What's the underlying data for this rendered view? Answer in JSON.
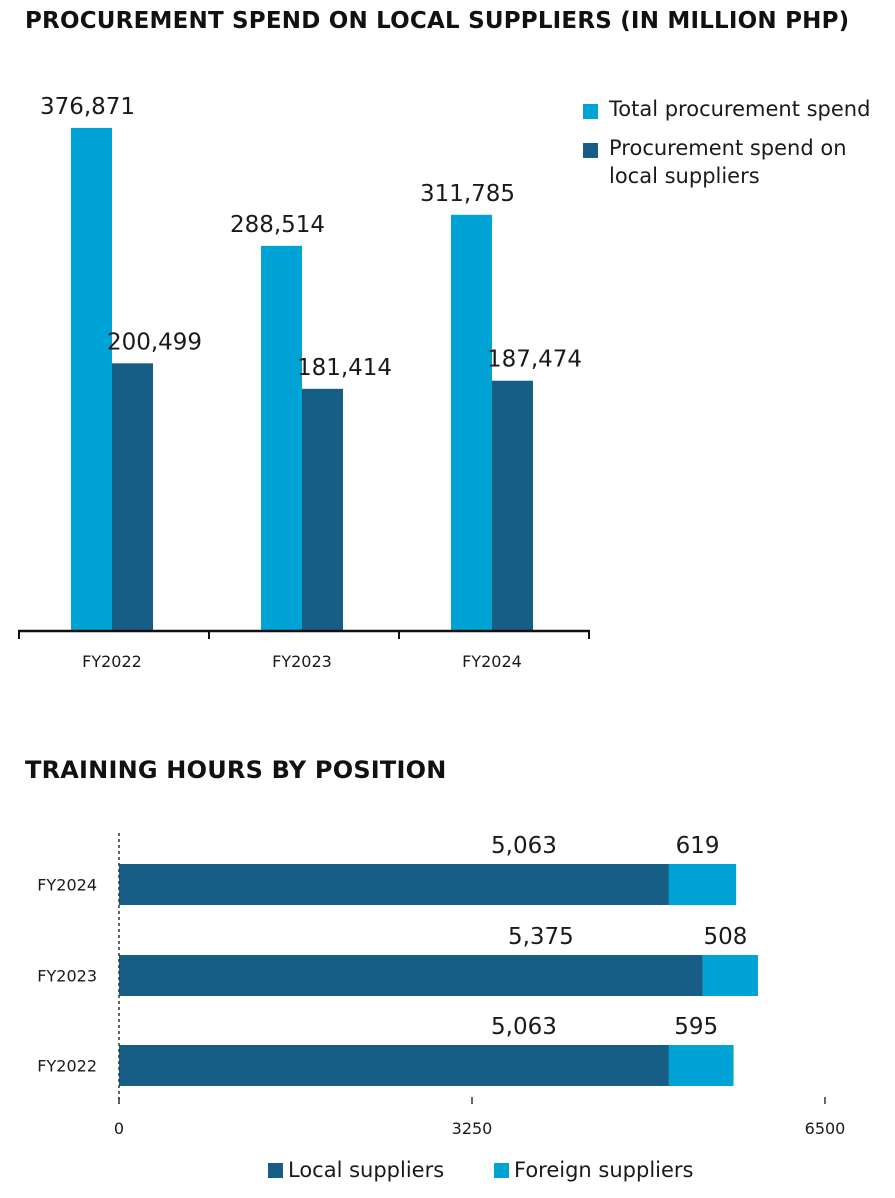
{
  "chart_data": [
    {
      "type": "bar",
      "title": "PROCUREMENT SPEND ON LOCAL SUPPLIERS (IN MILLION PHP)",
      "categories": [
        "FY2022",
        "FY2023",
        "FY2024"
      ],
      "series": [
        {
          "name": "Total procurement spend",
          "values": [
            376871,
            288514,
            311785
          ],
          "labels": [
            "376,871",
            "288,514",
            "311,785"
          ],
          "color": "#00a3d6"
        },
        {
          "name": "Procurement spend on local suppliers",
          "values": [
            200499,
            181414,
            187474
          ],
          "labels": [
            "200,499",
            "181,414",
            "187,474"
          ],
          "color": "#175e86"
        }
      ],
      "legend": {
        "position": "top-right",
        "items": [
          "Total procurement spend",
          "Procurement spend on local suppliers"
        ],
        "lines": [
          [
            "Total procurement spend"
          ],
          [
            "Procurement spend on",
            "local suppliers"
          ]
        ]
      },
      "ylim": [
        0,
        400000
      ],
      "xlabel": "",
      "ylabel": "",
      "grid": false
    },
    {
      "type": "bar",
      "orientation": "horizontal",
      "stacked": true,
      "title": "TRAINING HOURS BY POSITION",
      "categories": [
        "FY2024",
        "FY2023",
        "FY2022"
      ],
      "series": [
        {
          "name": "Local suppliers",
          "values": [
            5063,
            5375,
            5063
          ],
          "labels": [
            "5,063",
            "5,375",
            "5,063"
          ],
          "color": "#175e86"
        },
        {
          "name": "Foreign suppliers",
          "values": [
            619,
            508,
            595
          ],
          "labels": [
            "619",
            "508",
            "595"
          ],
          "color": "#00a3d6"
        }
      ],
      "xlim": [
        0,
        6500
      ],
      "xticks": [
        "0",
        "3250",
        "6500"
      ],
      "legend": {
        "position": "bottom-center",
        "items": [
          "Local suppliers",
          "Foreign suppliers"
        ]
      },
      "xlabel": "",
      "ylabel": "",
      "grid": false
    }
  ]
}
